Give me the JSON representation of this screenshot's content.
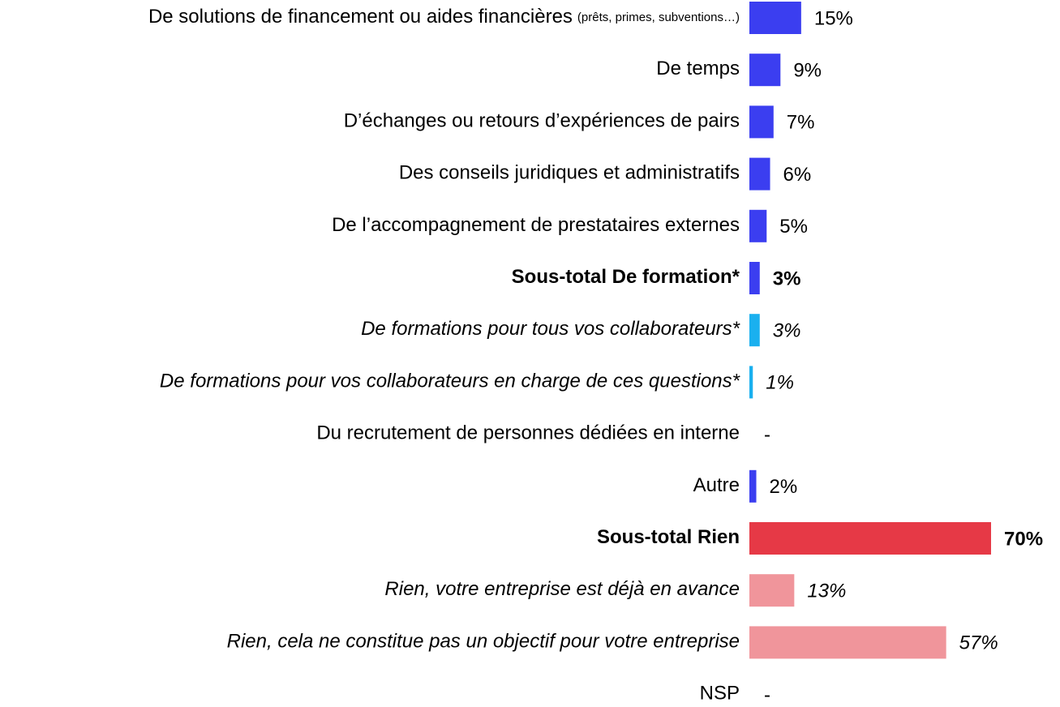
{
  "chart_data": {
    "type": "hbar",
    "categories": [
      "De solutions de financement ou aides financières",
      "De temps",
      "D’échanges ou retours d’expériences de pairs",
      "Des conseils juridiques et administratifs",
      "De l’accompagnement de prestataires externes",
      "Sous-total De formation*",
      "De formations pour tous vos collaborateurs*",
      "De formations pour vos collaborateurs en charge de ces questions*",
      "Du recrutement de personnes dédiées en interne",
      "Autre",
      "Sous-total Rien",
      "Rien, votre entreprise est déjà en avance",
      "Rien, cela ne constitue pas un objectif pour votre entreprise",
      "NSP"
    ],
    "category_details": [
      "(prêts, primes, subventions…)",
      null,
      null,
      null,
      null,
      null,
      null,
      null,
      null,
      null,
      null,
      null,
      null,
      null
    ],
    "values": [
      15,
      9,
      7,
      6,
      5,
      3,
      3,
      1,
      0,
      2,
      70,
      13,
      57,
      0
    ],
    "value_labels": [
      "15%",
      "9%",
      "7%",
      "6%",
      "5%",
      "3%",
      "3%",
      "1%",
      "-",
      "2%",
      "70%",
      "13%",
      "57%",
      "-"
    ],
    "colors": [
      "#3b3ef0",
      "#3b3ef0",
      "#3b3ef0",
      "#3b3ef0",
      "#3b3ef0",
      "#3b3ef0",
      "#1ab0ef",
      "#1ab0ef",
      "#3b3ef0",
      "#3b3ef0",
      "#e63946",
      "#f0959b",
      "#f0959b",
      "#3b3ef0"
    ],
    "styles": [
      "normal",
      "normal",
      "normal",
      "normal",
      "normal",
      "bold",
      "italic",
      "italic",
      "normal",
      "normal",
      "bold",
      "italic",
      "italic",
      "normal"
    ],
    "xlim": [
      0,
      70
    ]
  }
}
